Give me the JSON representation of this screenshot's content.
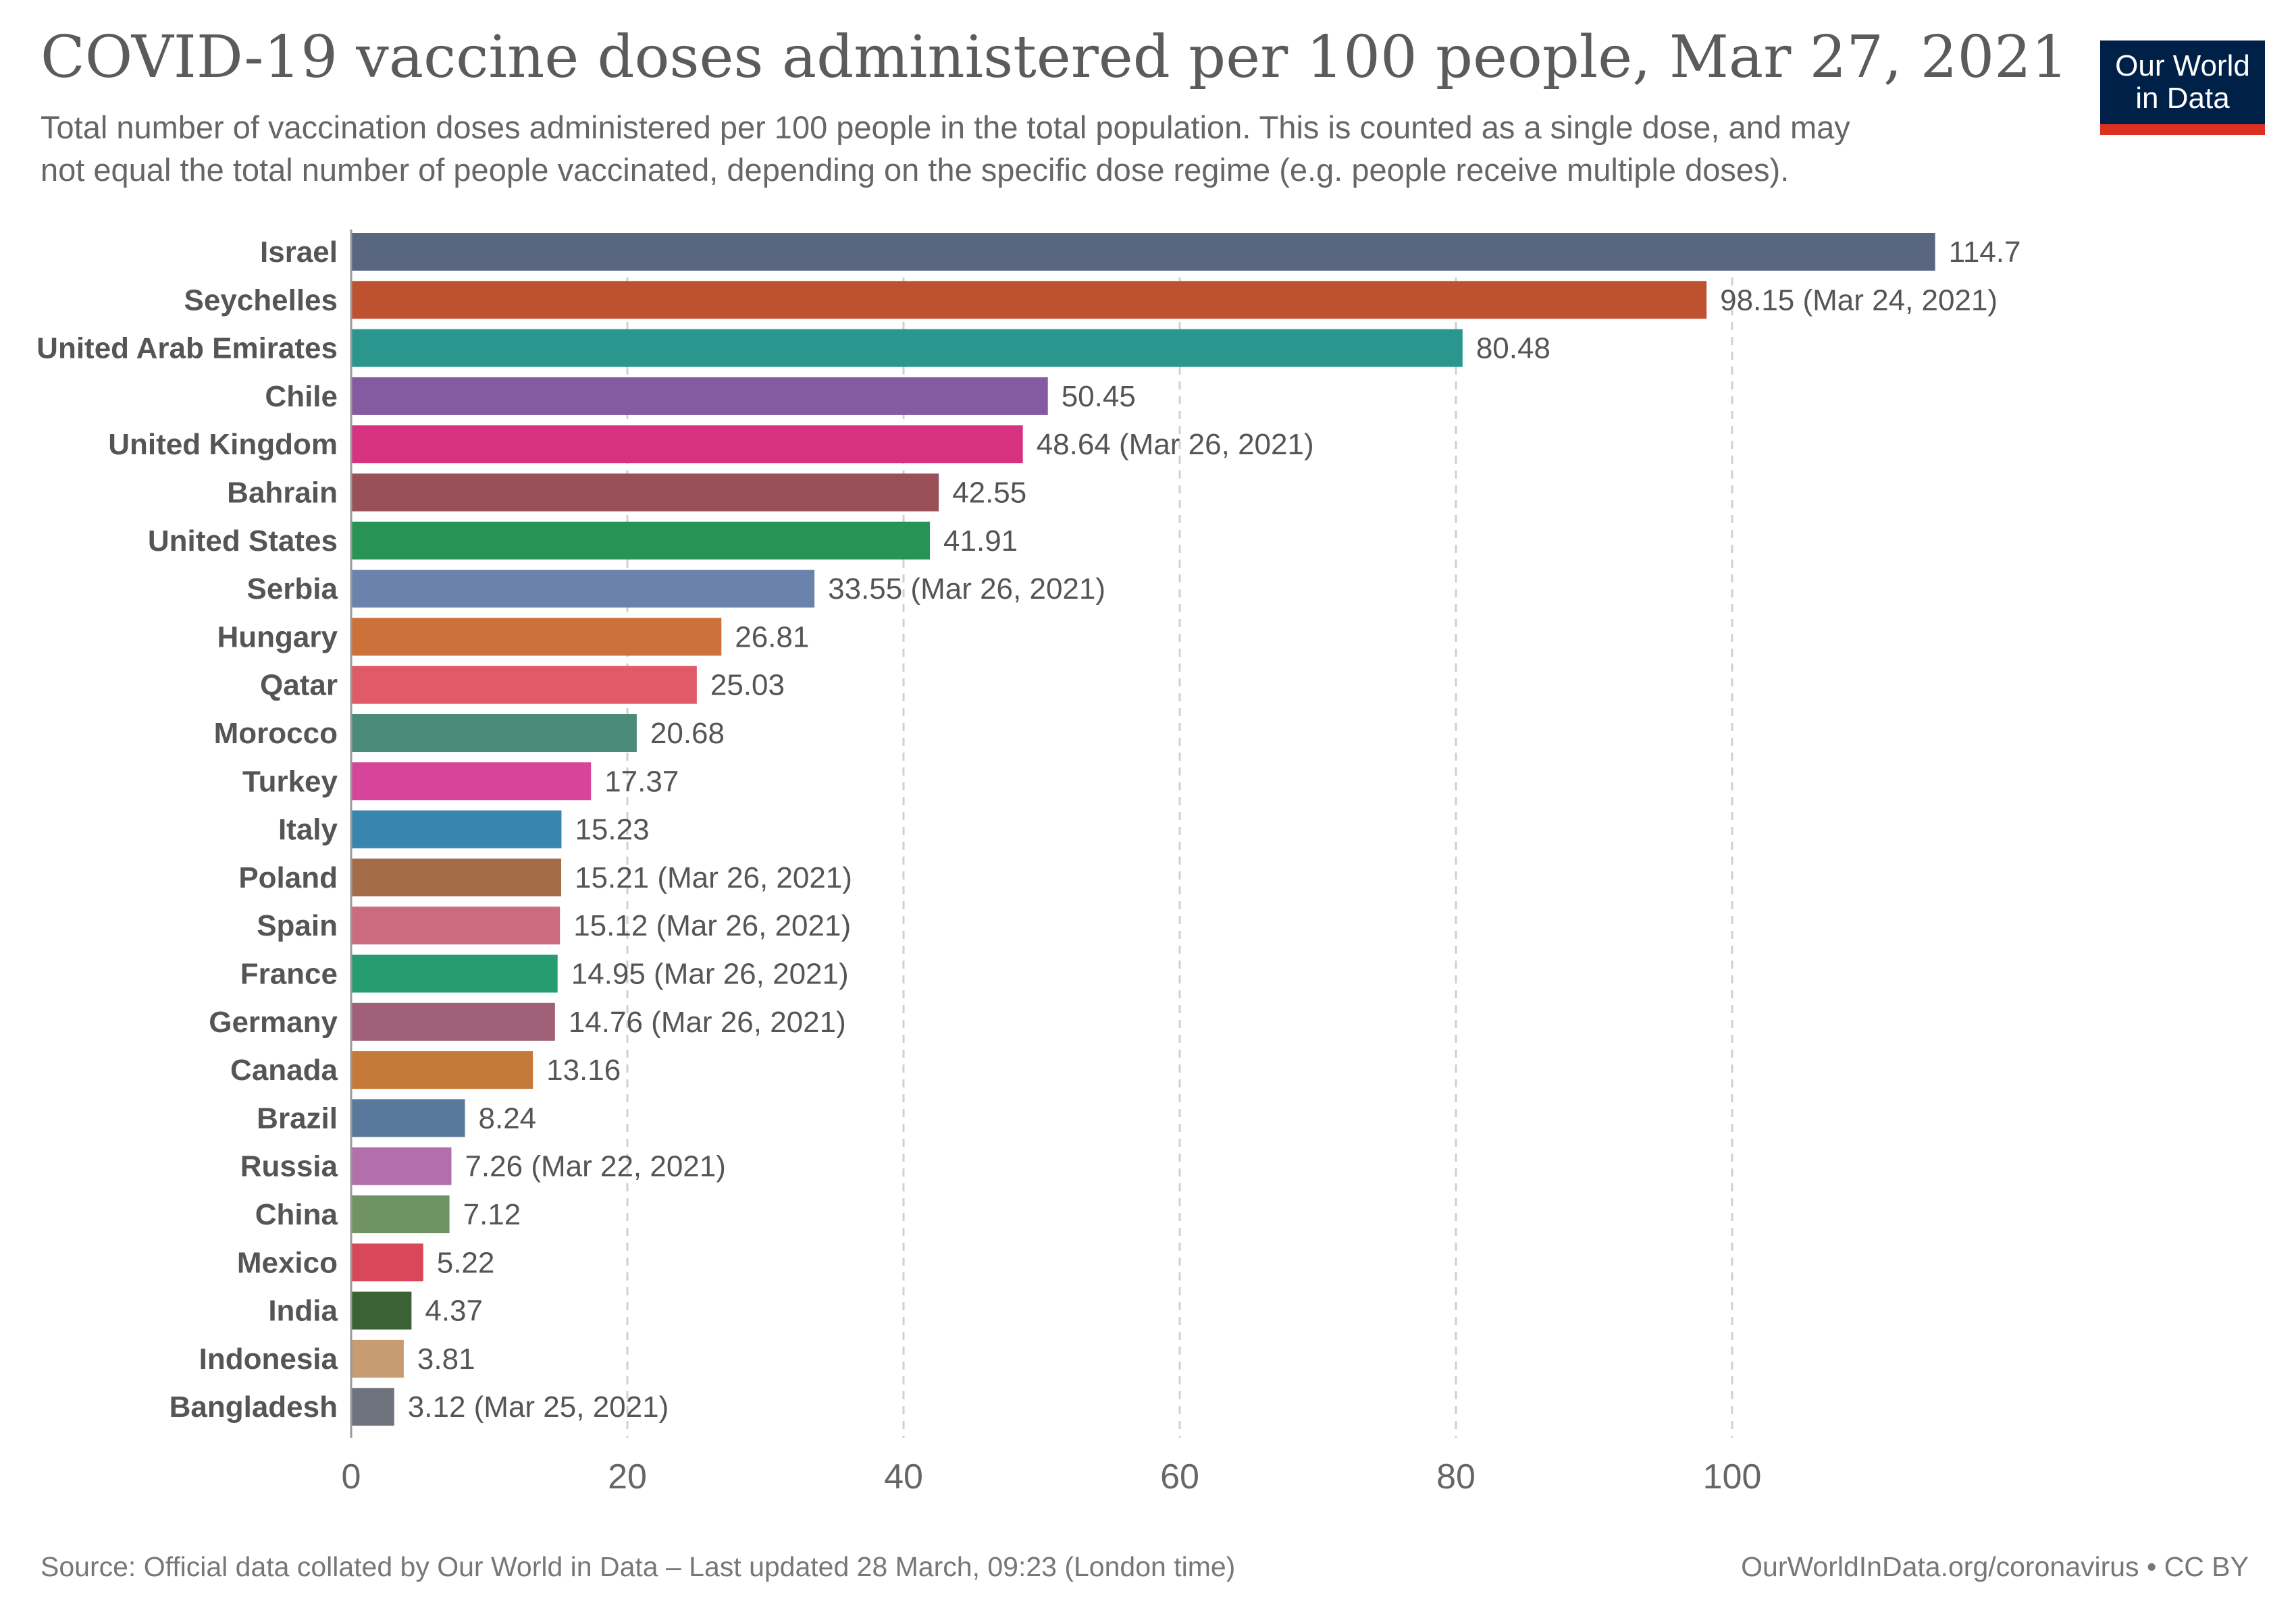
{
  "header": {
    "title": "COVID-19 vaccine doses administered per 100 people, Mar 27, 2021",
    "subtitle_line1": "Total number of vaccination doses administered per 100 people in the total population. This is counted as a single dose, and may",
    "subtitle_line2": "not equal the total number of people vaccinated, depending on the specific dose regime (e.g. people receive multiple doses)."
  },
  "logo": {
    "line1": "Our World",
    "line2": "in Data",
    "bg_color": "#002147",
    "accent_color": "#dc3020"
  },
  "footer": {
    "source": "Source: Official data collated by Our World in Data – Last updated 28 March, 09:23 (London time)",
    "credit": "OurWorldInData.org/coronavirus • CC BY"
  },
  "chart_data": {
    "type": "bar",
    "orientation": "horizontal",
    "xlim": [
      0,
      115
    ],
    "xticks": [
      0,
      20,
      40,
      60,
      80,
      100
    ],
    "grid": "vertical dashed",
    "categories": [
      "Israel",
      "Seychelles",
      "United Arab Emirates",
      "Chile",
      "United Kingdom",
      "Bahrain",
      "United States",
      "Serbia",
      "Hungary",
      "Qatar",
      "Morocco",
      "Turkey",
      "Italy",
      "Poland",
      "Spain",
      "France",
      "Germany",
      "Canada",
      "Brazil",
      "Russia",
      "China",
      "Mexico",
      "India",
      "Indonesia",
      "Bangladesh"
    ],
    "values": [
      114.7,
      98.15,
      80.48,
      50.45,
      48.64,
      42.55,
      41.91,
      33.55,
      26.81,
      25.03,
      20.68,
      17.37,
      15.23,
      15.21,
      15.12,
      14.95,
      14.76,
      13.16,
      8.24,
      7.26,
      7.12,
      5.22,
      4.37,
      3.81,
      3.12
    ],
    "value_labels": [
      "114.7",
      "98.15 (Mar 24, 2021)",
      "80.48",
      "50.45",
      "48.64 (Mar 26, 2021)",
      "42.55",
      "41.91",
      "33.55 (Mar 26, 2021)",
      "26.81",
      "25.03",
      "20.68",
      "17.37",
      "15.23",
      "15.21 (Mar 26, 2021)",
      "15.12 (Mar 26, 2021)",
      "14.95 (Mar 26, 2021)",
      "14.76 (Mar 26, 2021)",
      "13.16",
      "8.24",
      "7.26 (Mar 22, 2021)",
      "7.12",
      "5.22",
      "4.37",
      "3.81",
      "3.12 (Mar 25, 2021)"
    ],
    "colors": [
      "#58667f",
      "#be5130",
      "#2a968e",
      "#845ba0",
      "#d73281",
      "#9a5058",
      "#279456",
      "#6b82ad",
      "#cc7139",
      "#e15a67",
      "#4a8b7a",
      "#d64599",
      "#3886af",
      "#a56c4a",
      "#cc6b7d",
      "#269c72",
      "#a06178",
      "#c57a3a",
      "#58799c",
      "#b36fab",
      "#6f9362",
      "#d9475b",
      "#3b6234",
      "#c79c73",
      "#6e737e"
    ]
  }
}
